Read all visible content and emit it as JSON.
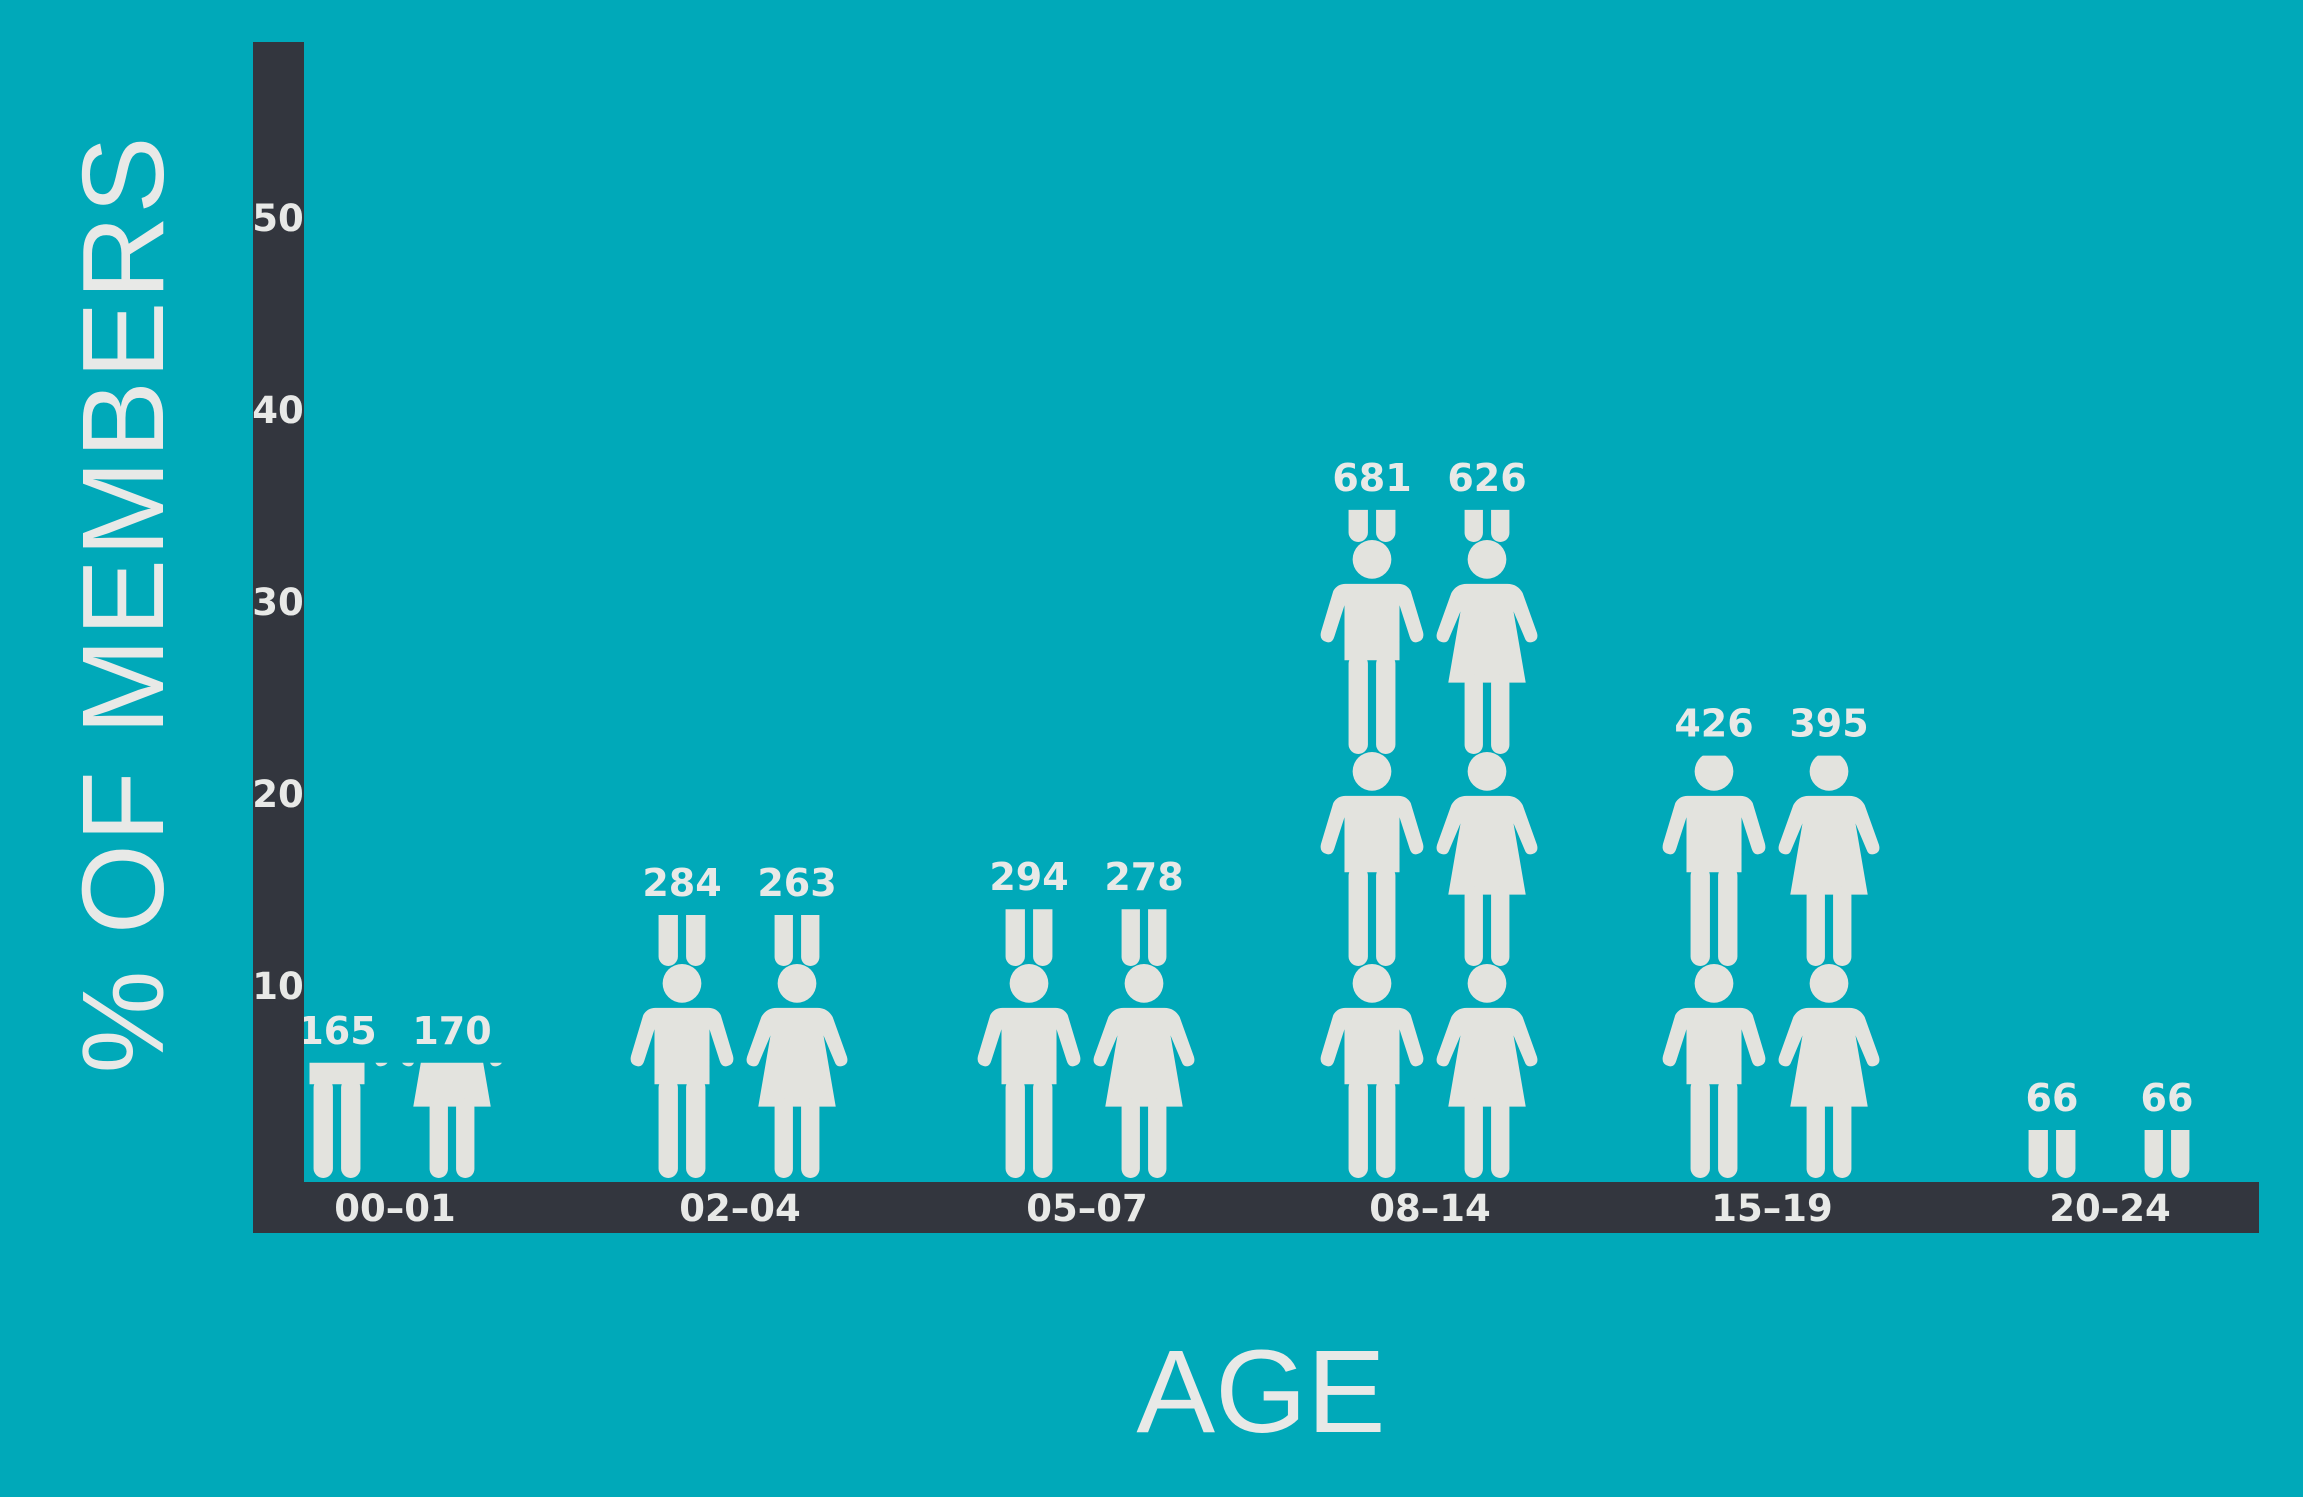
{
  "colors": {
    "background": "#00A9B9",
    "axis": "#33363E",
    "figure": "#E3E3DE",
    "text": "#E8E9E7"
  },
  "icons": [
    "male-figure-icon",
    "female-figure-icon"
  ],
  "chart_data": {
    "type": "bar",
    "title": "",
    "ylabel": "% OF MEMBERS",
    "xlabel": "AGE",
    "ylim": [
      0,
      55
    ],
    "yticks": [
      "10",
      "20",
      "30",
      "40",
      "50"
    ],
    "categories": [
      "00–01",
      "02–04",
      "05–07",
      "08–14",
      "15–19",
      "20–24"
    ],
    "series": [
      {
        "icon": "male-figure-icon",
        "values": [
          6.0,
          13.7,
          14.0,
          34.8,
          22.0,
          2.5
        ],
        "labels": [
          "165",
          "284",
          "294",
          "681",
          "426",
          "66"
        ]
      },
      {
        "icon": "female-figure-icon",
        "values": [
          6.0,
          13.7,
          14.0,
          34.8,
          22.0,
          2.5
        ],
        "labels": [
          "170",
          "263",
          "278",
          "626",
          "395",
          "66"
        ]
      }
    ],
    "grid": false,
    "legend": "none"
  }
}
